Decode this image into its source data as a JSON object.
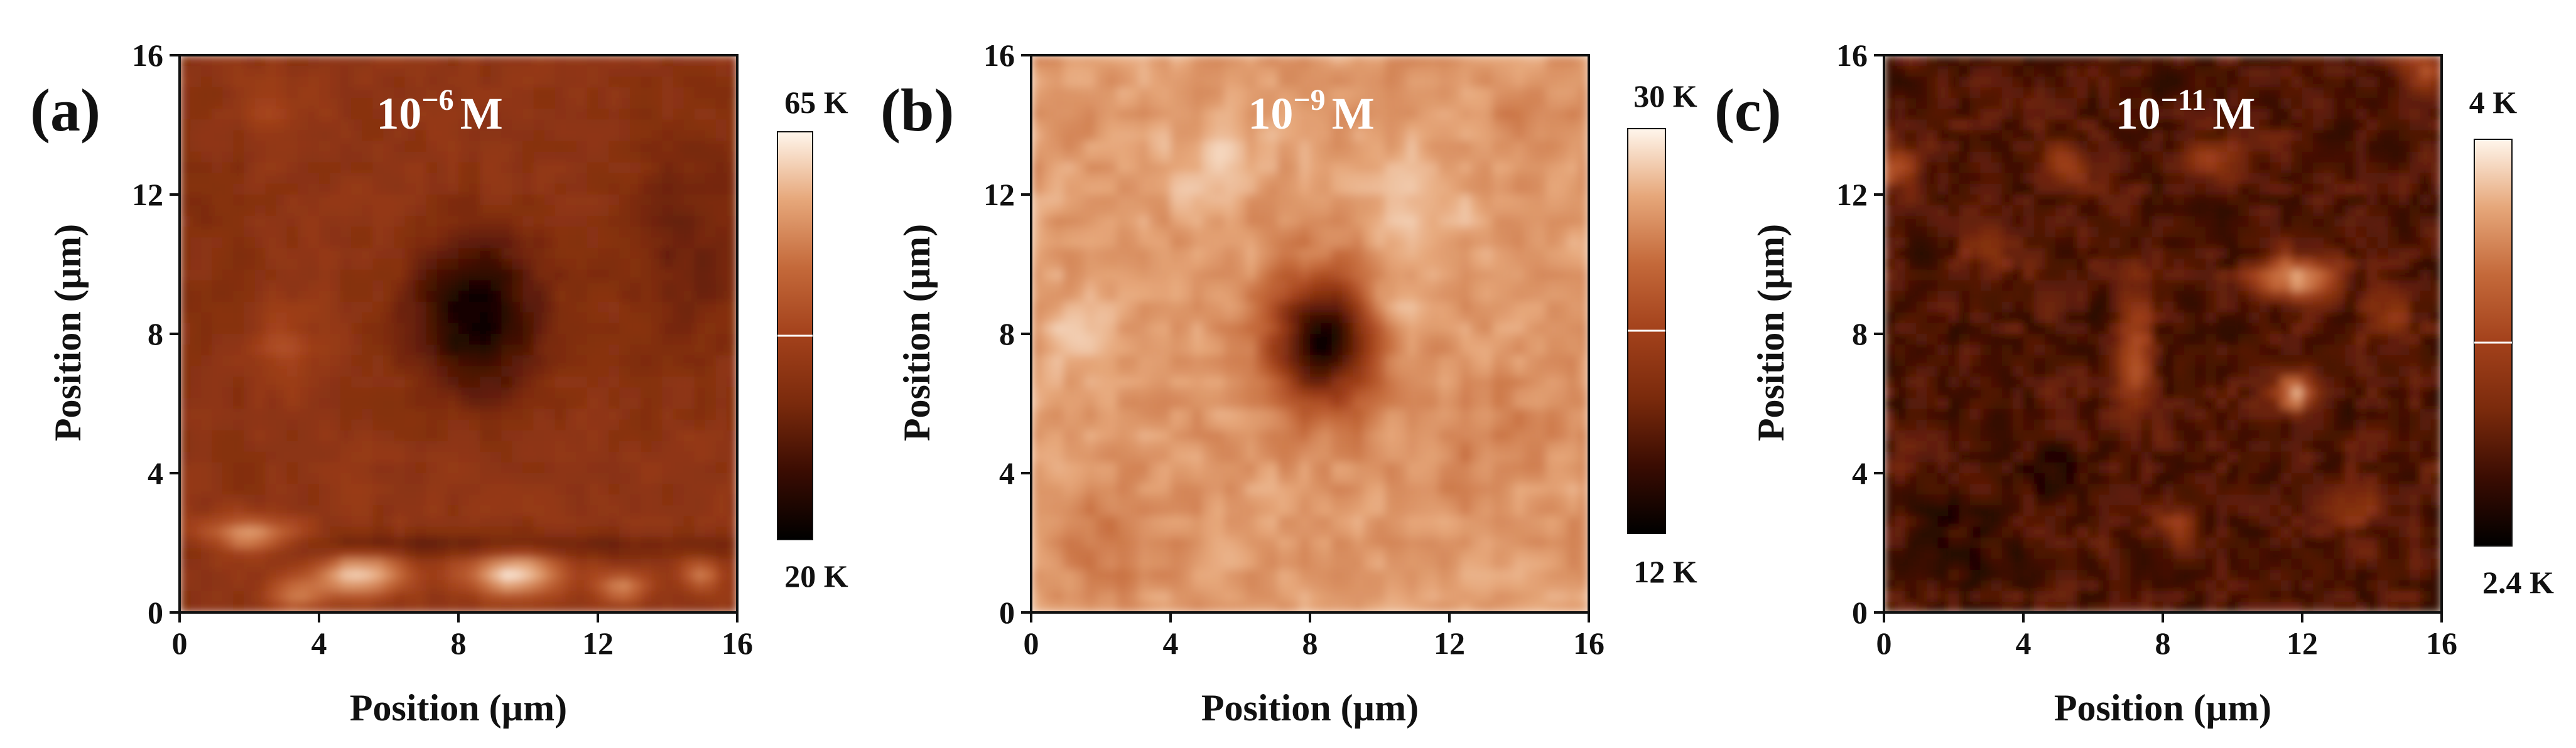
{
  "figure_caption": "",
  "chart_data": [
    {
      "type": "heatmap",
      "panel_label": "(a)",
      "concentration": {
        "base": "10",
        "exponent": "−6",
        "unit": "M"
      },
      "xlabel": "Position (µm)",
      "ylabel": "Position (µm)",
      "xlim": [
        0,
        16
      ],
      "ylim": [
        0,
        16
      ],
      "xticks": [
        "0",
        "4",
        "8",
        "12",
        "16"
      ],
      "yticks": [
        "0",
        "4",
        "8",
        "12",
        "16"
      ],
      "colorbar": {
        "min_label": "20 K",
        "max_label": "65 K",
        "min": 20000,
        "max": 65000,
        "mid_fraction": 0.5
      },
      "colormap": [
        "#000000",
        "#3a0c02",
        "#7a2a0c",
        "#a3411b",
        "#c4693a",
        "#e6a77a",
        "#fff6ec"
      ],
      "base_level": 0.42,
      "features": [
        {
          "x": 8.5,
          "y": 8.5,
          "rx": 1.3,
          "ry": 1.6,
          "amp": -0.38
        },
        {
          "x": 2.0,
          "y": 2.2,
          "rx": 0.9,
          "ry": 0.35,
          "amp": 0.45
        },
        {
          "x": 5.2,
          "y": 1.1,
          "rx": 0.9,
          "ry": 0.4,
          "amp": 0.5
        },
        {
          "x": 9.6,
          "y": 1.1,
          "rx": 1.0,
          "ry": 0.4,
          "amp": 0.52
        },
        {
          "x": 12.7,
          "y": 0.7,
          "rx": 0.5,
          "ry": 0.3,
          "amp": 0.35
        },
        {
          "x": 15.0,
          "y": 1.1,
          "rx": 0.4,
          "ry": 0.3,
          "amp": 0.3
        },
        {
          "x": 3.5,
          "y": 0.5,
          "rx": 0.6,
          "ry": 0.3,
          "amp": 0.3
        },
        {
          "x": 3.0,
          "y": 7.5,
          "rx": 0.7,
          "ry": 0.8,
          "amp": 0.12
        },
        {
          "x": 2.5,
          "y": 14.5,
          "rx": 1.0,
          "ry": 0.7,
          "amp": 0.08
        },
        {
          "x": 14.5,
          "y": 10.5,
          "rx": 1.6,
          "ry": 2.5,
          "amp": -0.12
        },
        {
          "x": 8.0,
          "y": 1.9,
          "rx": 8.0,
          "ry": 0.25,
          "amp": -0.14
        },
        {
          "x": 1.0,
          "y": 11.0,
          "rx": 1.0,
          "ry": 5.0,
          "amp": -0.05
        }
      ]
    },
    {
      "type": "heatmap",
      "panel_label": "(b)",
      "concentration": {
        "base": "10",
        "exponent": "−9",
        "unit": "M"
      },
      "xlabel": "Position (µm)",
      "ylabel": "Position (µm)",
      "xlim": [
        0,
        16
      ],
      "ylim": [
        0,
        16
      ],
      "xticks": [
        "0",
        "4",
        "8",
        "12",
        "16"
      ],
      "yticks": [
        "0",
        "4",
        "8",
        "12",
        "16"
      ],
      "colorbar": {
        "min_label": "12 K",
        "max_label": "30 K",
        "min": 12000,
        "max": 30000,
        "mid_fraction": 0.5
      },
      "colormap": [
        "#000000",
        "#3a0c02",
        "#7a2a0c",
        "#a3411b",
        "#c4693a",
        "#e6a77a",
        "#fff6ec"
      ],
      "base_level": 0.8,
      "features": [
        {
          "x": 8.3,
          "y": 7.8,
          "rx": 1.0,
          "ry": 1.3,
          "amp": -0.75
        },
        {
          "x": 2.0,
          "y": 2.0,
          "rx": 1.5,
          "ry": 1.0,
          "amp": -0.08
        },
        {
          "x": 13.0,
          "y": 5.0,
          "rx": 1.5,
          "ry": 1.2,
          "amp": -0.07
        },
        {
          "x": 5.0,
          "y": 13.0,
          "rx": 1.2,
          "ry": 1.0,
          "amp": 0.08
        },
        {
          "x": 11.0,
          "y": 12.0,
          "rx": 1.2,
          "ry": 1.2,
          "amp": 0.08
        },
        {
          "x": 1.5,
          "y": 8.0,
          "rx": 0.8,
          "ry": 0.8,
          "amp": 0.1
        },
        {
          "x": 14.0,
          "y": 14.0,
          "rx": 1.0,
          "ry": 1.0,
          "amp": -0.06
        },
        {
          "x": 10.5,
          "y": 9.0,
          "rx": 0.5,
          "ry": 0.5,
          "amp": 0.1
        }
      ]
    },
    {
      "type": "heatmap",
      "panel_label": "(c)",
      "concentration": {
        "base": "10",
        "exponent": "−11",
        "unit": "M"
      },
      "xlabel": "Position (µm)",
      "ylabel": "Position (µm)",
      "xlim": [
        0,
        16
      ],
      "ylim": [
        0,
        16
      ],
      "xticks": [
        "0",
        "4",
        "8",
        "12",
        "16"
      ],
      "yticks": [
        "0",
        "4",
        "8",
        "12",
        "16"
      ],
      "colorbar": {
        "min_label": "2.4 K",
        "max_label": "4 K",
        "min": 2400,
        "max": 4000,
        "mid_fraction": 0.5
      },
      "colormap": [
        "#000000",
        "#3a0c02",
        "#7a2a0c",
        "#a3411b",
        "#c4693a",
        "#e6a77a",
        "#fff6ec"
      ],
      "base_level": 0.22,
      "features": [
        {
          "x": 11.8,
          "y": 9.6,
          "rx": 0.8,
          "ry": 0.4,
          "amp": 0.6
        },
        {
          "x": 11.8,
          "y": 6.3,
          "rx": 0.4,
          "ry": 0.4,
          "amp": 0.55
        },
        {
          "x": 7.2,
          "y": 7.5,
          "rx": 0.35,
          "ry": 1.3,
          "amp": 0.35
        },
        {
          "x": 8.5,
          "y": 2.4,
          "rx": 0.35,
          "ry": 0.35,
          "amp": 0.32
        },
        {
          "x": 0.3,
          "y": 12.8,
          "rx": 0.5,
          "ry": 0.5,
          "amp": 0.35
        },
        {
          "x": 5.2,
          "y": 12.8,
          "rx": 0.5,
          "ry": 0.5,
          "amp": 0.25
        },
        {
          "x": 9.5,
          "y": 13.0,
          "rx": 0.6,
          "ry": 0.4,
          "amp": 0.25
        },
        {
          "x": 15.5,
          "y": 15.5,
          "rx": 0.5,
          "ry": 0.5,
          "amp": 0.3
        },
        {
          "x": 13.5,
          "y": 3.0,
          "rx": 0.6,
          "ry": 0.5,
          "amp": 0.2
        },
        {
          "x": 3.0,
          "y": 10.5,
          "rx": 0.6,
          "ry": 0.6,
          "amp": 0.18
        },
        {
          "x": 14.5,
          "y": 8.5,
          "rx": 0.5,
          "ry": 0.5,
          "amp": 0.22
        },
        {
          "x": 5.0,
          "y": 4.0,
          "rx": 0.8,
          "ry": 0.6,
          "amp": -0.12
        },
        {
          "x": 2.0,
          "y": 2.0,
          "rx": 1.0,
          "ry": 0.8,
          "amp": -0.1
        }
      ]
    }
  ]
}
